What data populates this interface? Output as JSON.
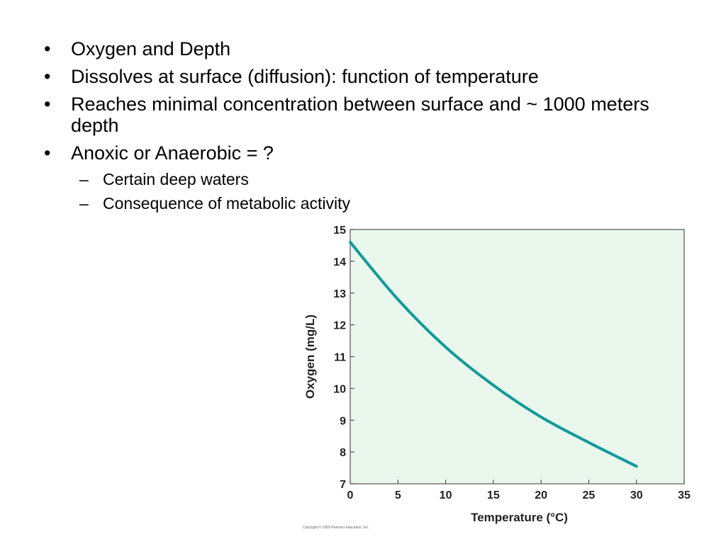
{
  "bullets": [
    {
      "level": 1,
      "text": "Oxygen and Depth"
    },
    {
      "level": 1,
      "text": "Dissolves at surface (diffusion): function of temperature"
    },
    {
      "level": 1,
      "text": "Reaches minimal concentration between surface and ~ 1000 meters depth"
    },
    {
      "level": 1,
      "text": "Anoxic or Anaerobic = ?"
    },
    {
      "level": 2,
      "text": "Certain deep waters"
    },
    {
      "level": 2,
      "text": "Consequence of metabolic activity"
    }
  ],
  "copyright": "Copyright © 2009 Pearson Education, Inc.",
  "chart_data": {
    "type": "line",
    "title": "",
    "xlabel": "Temperature (°C)",
    "ylabel": "Oxygen (mg/L)",
    "xlim": [
      0,
      35
    ],
    "ylim": [
      7,
      15
    ],
    "xticks": [
      0,
      5,
      10,
      15,
      20,
      25,
      30,
      35
    ],
    "yticks": [
      7,
      8,
      9,
      10,
      11,
      12,
      13,
      14,
      15
    ],
    "grid": false,
    "legend": "none",
    "plot_background": "#eaf7ed",
    "line_color": "#139a9a",
    "series": [
      {
        "x": [
          0,
          5,
          10,
          15,
          20,
          25,
          30
        ],
        "y": [
          14.6,
          12.8,
          11.3,
          10.1,
          9.1,
          8.3,
          7.55
        ]
      }
    ]
  }
}
